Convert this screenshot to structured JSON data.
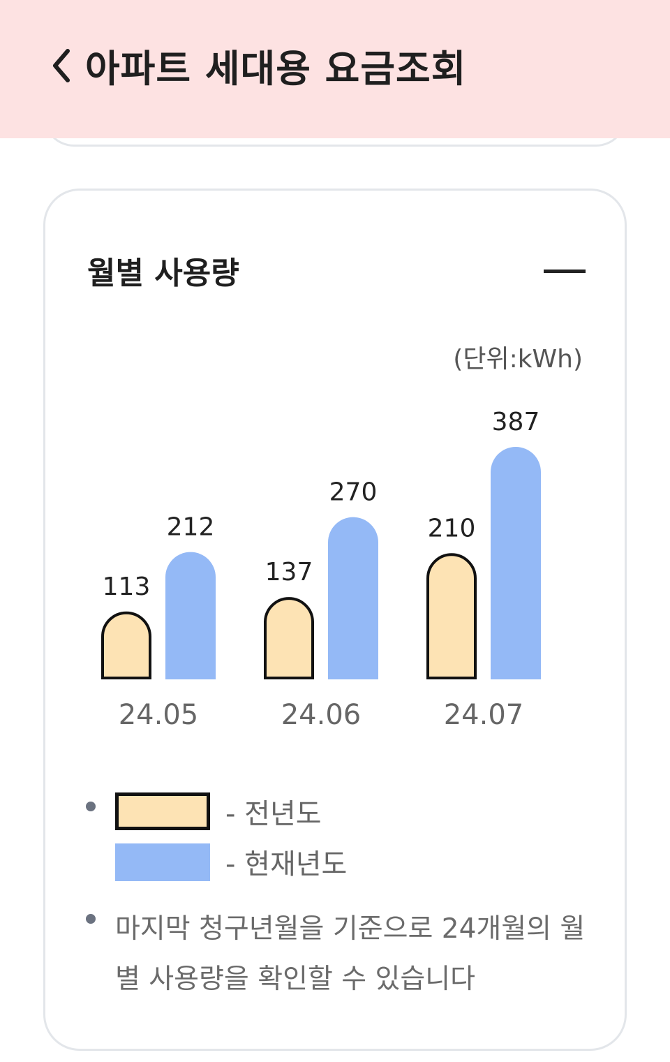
{
  "header": {
    "title": "아파트 세대용 요금조회",
    "back_icon": "chevron-left-icon",
    "background": "#fde2e2"
  },
  "card": {
    "title": "월별 사용량",
    "collapse_icon": "minus-icon",
    "unit": "(단위:kWh)"
  },
  "chart_data": {
    "type": "bar",
    "categories": [
      "24.05",
      "24.06",
      "24.07"
    ],
    "series": [
      {
        "name": "전년도",
        "values": [
          113,
          137,
          210
        ],
        "color": "#fde3b4",
        "stroke": "#111111"
      },
      {
        "name": "현재년도",
        "values": [
          212,
          270,
          387
        ],
        "color": "#94b9f6"
      }
    ],
    "ylim": [
      0,
      387
    ],
    "grid": false,
    "legend": "bottom"
  },
  "legend": {
    "prev_label": "- 전년도",
    "curr_label": "- 현재년도"
  },
  "note": "마지막 청구년월을 기준으로 24개월의 월별 사용량을 확인할 수 있습니다"
}
